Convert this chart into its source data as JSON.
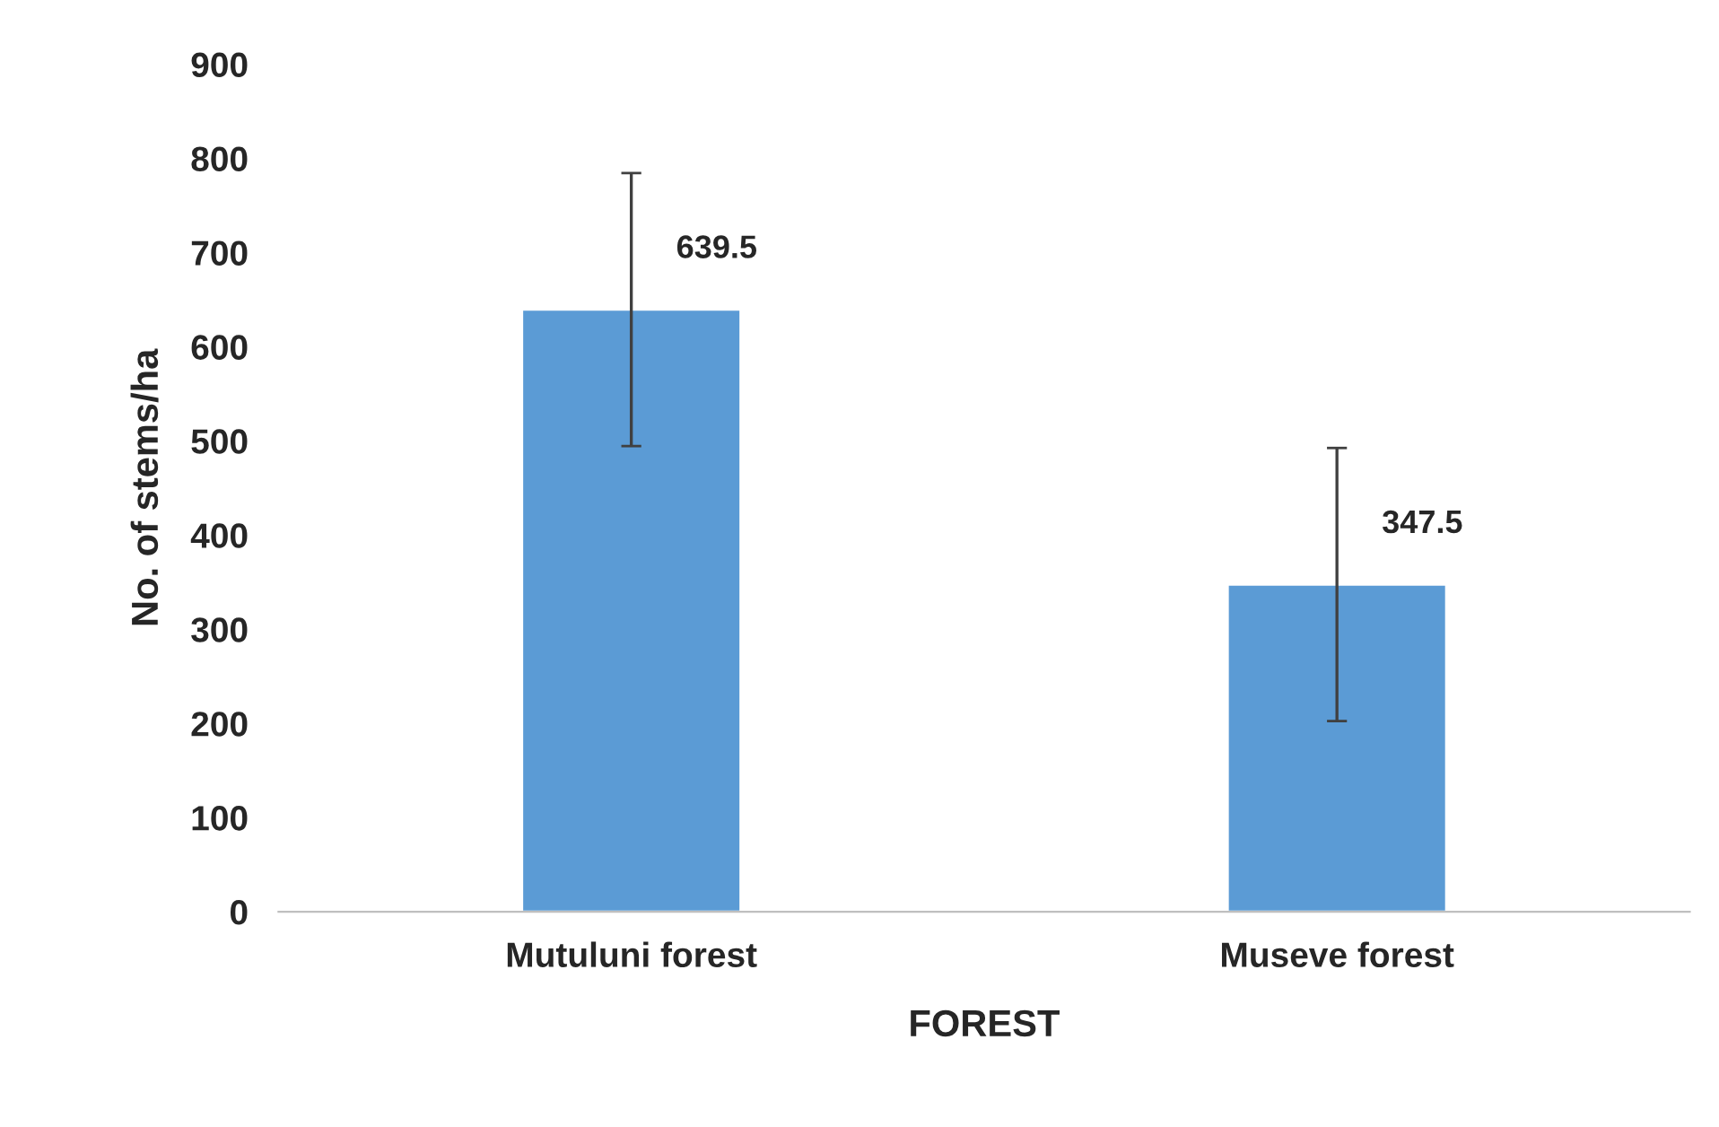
{
  "chart_data": {
    "type": "bar",
    "xlabel": "FOREST",
    "ylabel": "No. of stems/ha",
    "categories": [
      "Mutuluni forest",
      "Museve forest"
    ],
    "values": [
      639.5,
      347.5
    ],
    "errors": [
      145,
      145
    ],
    "color": "#5b9bd5",
    "ylim": [
      0,
      900
    ],
    "yticks": [
      0,
      100,
      200,
      300,
      400,
      500,
      600,
      700,
      800,
      900
    ],
    "data_labels": true,
    "grid": false,
    "legend": false
  }
}
